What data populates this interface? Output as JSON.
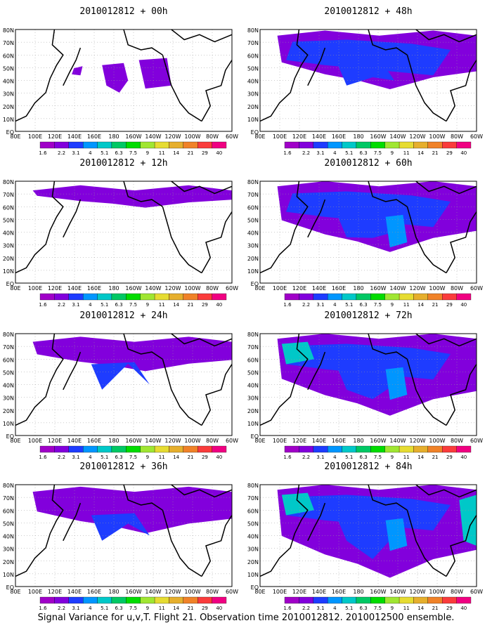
{
  "colorbar": {
    "ticks": [
      "1.6",
      "2.2",
      "3.1",
      "4",
      "5.1",
      "6.3",
      "7.5",
      "9",
      "11",
      "14",
      "21",
      "29",
      "40"
    ],
    "colors": [
      "#a000c8",
      "#8200dc",
      "#1e3cff",
      "#0096ff",
      "#00c8c8",
      "#00c864",
      "#00dc00",
      "#a0e632",
      "#e6dc32",
      "#e6af2d",
      "#f08228",
      "#fa3c3c",
      "#f00082"
    ]
  },
  "axes": {
    "lat_labels": [
      "80N",
      "70N",
      "60N",
      "50N",
      "40N",
      "30N",
      "20N",
      "10N",
      "EQ"
    ],
    "lon_labels": [
      "80E",
      "100E",
      "120E",
      "140E",
      "160E",
      "180",
      "160W",
      "140W",
      "120W",
      "100W",
      "80W",
      "60W"
    ]
  },
  "panels": [
    {
      "id": "p00",
      "title": "2010012812 + 00h",
      "lead": 0
    },
    {
      "id": "p48",
      "title": "2010012812 + 48h",
      "lead": 48
    },
    {
      "id": "p12",
      "title": "2010012812 + 12h",
      "lead": 12
    },
    {
      "id": "p60",
      "title": "2010012812 + 60h",
      "lead": 60
    },
    {
      "id": "p24",
      "title": "2010012812 + 24h",
      "lead": 24
    },
    {
      "id": "p72",
      "title": "2010012812 + 72h",
      "lead": 72
    },
    {
      "id": "p36",
      "title": "2010012812 + 36h",
      "lead": 36
    },
    {
      "id": "p84",
      "title": "2010012812 + 84h",
      "lead": 84
    }
  ],
  "caption": "Signal Variance for u,v,T. Flight 21. Observation time 2010012812. 2010012500 ensemble."
}
